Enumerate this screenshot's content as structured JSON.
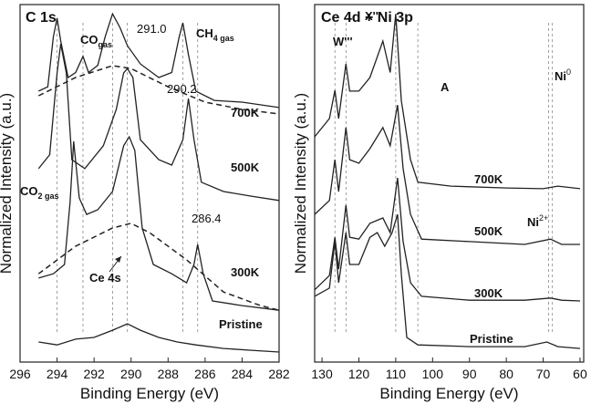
{
  "chart_data": [
    {
      "type": "line",
      "title": "C 1s",
      "xlabel": "Binding Energy (eV)",
      "ylabel": "Normalized Intensity (a.u.)",
      "xlim": [
        296,
        282
      ],
      "xticks": [
        296,
        294,
        292,
        290,
        288,
        286,
        284,
        282
      ],
      "ylim": [
        0,
        100
      ],
      "series": [
        {
          "name": "700K",
          "color": "#222222",
          "x": [
            295.0,
            294.5,
            294.2,
            294.0,
            293.8,
            293.4,
            293.0,
            292.6,
            292.3,
            291.8,
            291.4,
            291.0,
            290.6,
            290.2,
            289.5,
            288.5,
            287.8,
            287.4,
            287.2,
            286.9,
            286.5,
            285.5,
            284.0,
            282.0
          ],
          "values": [
            75.8,
            77,
            91,
            96.2,
            89.8,
            79.6,
            81,
            85.5,
            81,
            83,
            91,
            97.4,
            93.6,
            88.5,
            83.4,
            79.6,
            81,
            91,
            94.9,
            86,
            75.8,
            73.2,
            72.7,
            71.2
          ]
        },
        {
          "name": "500K",
          "color": "#222222",
          "x": [
            295.0,
            294.4,
            294.0,
            293.8,
            293.5,
            293.2,
            292.5,
            291.5,
            290.8,
            290.4,
            290.2,
            289.9,
            289.5,
            288.5,
            287.8,
            287.2,
            286.9,
            286.6,
            286.2,
            285.0,
            283.5,
            282.0
          ],
          "values": [
            54.1,
            58,
            80.9,
            89,
            80.9,
            56.6,
            54.1,
            60.5,
            70.7,
            80.9,
            82.1,
            79.6,
            62.2,
            56.6,
            55.1,
            62.2,
            73.7,
            62.2,
            50.3,
            47.7,
            46.4,
            45.2
          ]
        },
        {
          "name": "300K",
          "color": "#222222",
          "x": [
            295.0,
            294.2,
            293.6,
            293.3,
            293.1,
            292.8,
            292.4,
            291.8,
            291.0,
            290.4,
            290.1,
            289.8,
            289.4,
            288.8,
            287.8,
            287.0,
            286.6,
            286.4,
            286.1,
            285.6,
            284.0,
            282.0
          ],
          "values": [
            23.5,
            24.7,
            27.3,
            44.6,
            61.7,
            45.9,
            41.3,
            42.6,
            47.7,
            60.5,
            63,
            59.2,
            37.5,
            27.3,
            24.7,
            22.2,
            27.3,
            32.9,
            24.7,
            17.1,
            15.8,
            14.5
          ]
        },
        {
          "name": "Pristine",
          "color": "#222222",
          "x": [
            295.0,
            294.0,
            293.0,
            292.0,
            291.0,
            290.2,
            289.5,
            288.5,
            287.5,
            286.5,
            285.0,
            283.5,
            282.0
          ],
          "values": [
            5.6,
            4.8,
            6.4,
            6.9,
            8.9,
            10.7,
            8.9,
            6.9,
            5.6,
            4.8,
            3.8,
            3.3,
            2.8
          ]
        }
      ],
      "fits": [
        {
          "x": [
            295,
            293,
            291,
            290,
            288,
            286,
            284,
            282
          ],
          "values": [
            74.5,
            79.6,
            82.9,
            82.1,
            77,
            72.7,
            70.7,
            69.4
          ]
        },
        {
          "x": [
            295,
            293,
            291,
            290,
            289,
            287,
            285,
            283,
            282
          ],
          "values": [
            24.7,
            32.4,
            37.5,
            38.8,
            36.2,
            28.6,
            19.6,
            15.8,
            14.5
          ]
        }
      ],
      "reference_lines": [
        294.0,
        292.6,
        291.0,
        290.2,
        287.2,
        286.4
      ],
      "annotations": [
        {
          "text": "CO",
          "sub": "gas"
        },
        {
          "text": "291.0"
        },
        {
          "text": "CH",
          "sub": "4 gas"
        },
        {
          "text": "290.2"
        },
        {
          "text": "CO",
          "sub": "2 gas"
        },
        {
          "text": "286.4"
        },
        {
          "text": "Ce 4s"
        }
      ]
    },
    {
      "type": "line",
      "title": "Ce 4d + Ni 3p",
      "xlabel": "Binding Energy (eV)",
      "ylabel": "Normalized Intensity (a.u.)",
      "xlim": [
        132,
        59
      ],
      "xticks": [
        130,
        120,
        110,
        100,
        90,
        80,
        70,
        60
      ],
      "ylim": [
        0,
        100
      ],
      "series": [
        {
          "name": "700K",
          "color": "#222222",
          "x": [
            132,
            128,
            126.5,
            125.5,
            123.5,
            122.5,
            120,
            117,
            113.5,
            111.5,
            110,
            108.5,
            106,
            104,
            95,
            80,
            70,
            66,
            60
          ],
          "values": [
            63,
            68.1,
            76,
            68.1,
            83.4,
            75.8,
            75.8,
            79.6,
            89.8,
            81,
            97.4,
            73.2,
            56.6,
            50.3,
            49.2,
            48.7,
            48.5,
            49.2,
            48.5
          ]
        },
        {
          "name": "500K",
          "color": "#222222",
          "x": [
            132,
            128,
            126.5,
            125.5,
            123.5,
            122.5,
            120,
            117,
            113.5,
            111.5,
            109.5,
            108,
            106,
            103,
            90,
            75,
            68,
            65,
            60
          ],
          "values": [
            41.3,
            45.2,
            56.6,
            47.7,
            65.6,
            56.6,
            55.6,
            59.7,
            65.6,
            60.5,
            71.9,
            54.1,
            41.3,
            34.4,
            33.7,
            32.9,
            34.4,
            32.9,
            32.9
          ]
        },
        {
          "name": "300K",
          "color": "#222222",
          "x": [
            132,
            128,
            126.5,
            125.5,
            123.5,
            122.5,
            120,
            117,
            113.5,
            111.5,
            109.5,
            108,
            106,
            103,
            90,
            75,
            68,
            65,
            60
          ],
          "values": [
            20.2,
            24.2,
            34.9,
            26,
            43.9,
            34.9,
            34.4,
            38.8,
            40.3,
            36.2,
            51.5,
            33.7,
            22.2,
            18.4,
            17.3,
            17.3,
            17.9,
            17.3,
            17.1
          ]
        },
        {
          "name": "Pristine",
          "color": "#222222",
          "x": [
            132,
            128,
            126.5,
            125.5,
            123.5,
            122.5,
            120,
            117,
            115,
            113,
            111,
            109.5,
            108.5,
            107,
            104,
            90,
            75,
            69,
            66,
            60
          ],
          "values": [
            18.4,
            20.7,
            33.7,
            22.2,
            36.2,
            27.3,
            27.3,
            34.9,
            36.2,
            32.4,
            36.2,
            41.3,
            24.7,
            6.9,
            4.8,
            4.3,
            4.3,
            5.6,
            4.3,
            3.8
          ]
        }
      ],
      "reference_lines": [
        126.5,
        123.5,
        110,
        104,
        67.5,
        68.5
      ],
      "annotations": [
        {
          "text": "W'''"
        },
        {
          "text": "X'''"
        },
        {
          "text": "A"
        },
        {
          "text": "Ni",
          "sup": "0"
        },
        {
          "text": "Ni",
          "sup": "2+"
        }
      ]
    }
  ]
}
